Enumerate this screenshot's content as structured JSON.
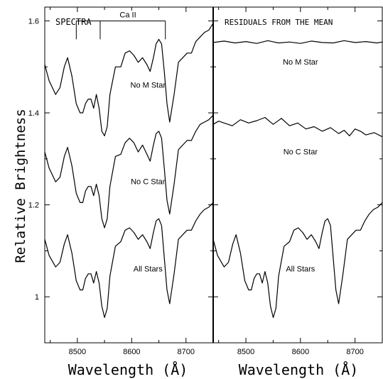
{
  "chart_data": [
    {
      "type": "line",
      "panel_label": "SPECTRA",
      "xlabel": "Wavelength (Å)",
      "ylabel": "Relative Brightness",
      "xlim": [
        8440,
        8750
      ],
      "ylim": [
        0.9,
        1.63
      ],
      "x_ticks": [
        8500,
        8600,
        8700
      ],
      "y_ticks": [
        1,
        1.2,
        1.4,
        1.6
      ],
      "y_tick_labels": [
        "1",
        "1.2",
        "1.4",
        "1.6"
      ],
      "grid": false,
      "annotation": {
        "label": "Ca II",
        "lines_angstrom": [
          8498,
          8542,
          8662
        ],
        "bracket_y": 1.6,
        "tick_bottom_y": 1.56
      },
      "series": [
        {
          "name": "No M Star",
          "label_at": [
            8630,
            1.455
          ],
          "x": [
            8440,
            8448,
            8460,
            8468,
            8476,
            8482,
            8490,
            8498,
            8505,
            8510,
            8515,
            8520,
            8525,
            8530,
            8535,
            8540,
            8545,
            8550,
            8555,
            8560,
            8570,
            8580,
            8588,
            8596,
            8604,
            8612,
            8620,
            8628,
            8634,
            8640,
            8645,
            8650,
            8655,
            8660,
            8665,
            8670,
            8678,
            8686,
            8694,
            8702,
            8710,
            8718,
            8726,
            8734,
            8742,
            8750
          ],
          "y": [
            1.505,
            1.47,
            1.44,
            1.455,
            1.5,
            1.52,
            1.48,
            1.42,
            1.4,
            1.4,
            1.42,
            1.43,
            1.43,
            1.41,
            1.44,
            1.41,
            1.36,
            1.35,
            1.37,
            1.44,
            1.5,
            1.5,
            1.53,
            1.535,
            1.525,
            1.51,
            1.52,
            1.505,
            1.49,
            1.52,
            1.55,
            1.56,
            1.55,
            1.49,
            1.42,
            1.38,
            1.44,
            1.51,
            1.52,
            1.53,
            1.53,
            1.555,
            1.565,
            1.575,
            1.58,
            1.595
          ]
        },
        {
          "name": "No C Star",
          "label_at": [
            8630,
            1.245
          ],
          "x": [
            8440,
            8448,
            8460,
            8468,
            8476,
            8482,
            8490,
            8498,
            8505,
            8510,
            8515,
            8520,
            8525,
            8530,
            8535,
            8540,
            8545,
            8550,
            8555,
            8560,
            8570,
            8580,
            8588,
            8596,
            8604,
            8612,
            8620,
            8628,
            8634,
            8640,
            8645,
            8650,
            8655,
            8660,
            8665,
            8670,
            8678,
            8686,
            8694,
            8702,
            8710,
            8718,
            8726,
            8734,
            8742,
            8750
          ],
          "y": [
            1.315,
            1.28,
            1.25,
            1.26,
            1.305,
            1.325,
            1.285,
            1.225,
            1.205,
            1.205,
            1.23,
            1.24,
            1.24,
            1.22,
            1.245,
            1.22,
            1.17,
            1.15,
            1.17,
            1.24,
            1.305,
            1.31,
            1.335,
            1.345,
            1.335,
            1.315,
            1.33,
            1.31,
            1.295,
            1.33,
            1.355,
            1.36,
            1.345,
            1.28,
            1.21,
            1.18,
            1.245,
            1.32,
            1.33,
            1.34,
            1.34,
            1.36,
            1.375,
            1.38,
            1.385,
            1.395
          ]
        },
        {
          "name": "All Stars",
          "label_at": [
            8630,
            1.055
          ],
          "x": [
            8440,
            8448,
            8460,
            8468,
            8476,
            8482,
            8490,
            8498,
            8505,
            8510,
            8515,
            8520,
            8525,
            8530,
            8535,
            8540,
            8545,
            8550,
            8555,
            8560,
            8570,
            8580,
            8588,
            8596,
            8604,
            8612,
            8620,
            8628,
            8634,
            8640,
            8645,
            8650,
            8655,
            8660,
            8665,
            8670,
            8678,
            8686,
            8694,
            8702,
            8710,
            8718,
            8726,
            8734,
            8742,
            8750
          ],
          "y": [
            1.125,
            1.09,
            1.065,
            1.075,
            1.115,
            1.135,
            1.095,
            1.035,
            1.015,
            1.015,
            1.04,
            1.05,
            1.05,
            1.03,
            1.055,
            1.03,
            0.98,
            0.955,
            0.975,
            1.045,
            1.11,
            1.12,
            1.145,
            1.15,
            1.14,
            1.125,
            1.135,
            1.12,
            1.105,
            1.14,
            1.165,
            1.17,
            1.155,
            1.085,
            1.015,
            0.985,
            1.05,
            1.125,
            1.135,
            1.145,
            1.145,
            1.165,
            1.18,
            1.19,
            1.195,
            1.205
          ]
        }
      ]
    },
    {
      "type": "line",
      "panel_label": "RESIDUALS FROM THE MEAN",
      "xlabel": "Wavelength (Å)",
      "ylabel": "",
      "xlim": [
        8440,
        8750
      ],
      "ylim": [
        0.9,
        1.63
      ],
      "x_ticks": [
        8500,
        8600,
        8700
      ],
      "grid": false,
      "series": [
        {
          "name": "No M Star",
          "label_at": [
            8600,
            1.505
          ],
          "x": [
            8440,
            8460,
            8480,
            8500,
            8520,
            8540,
            8560,
            8580,
            8600,
            8620,
            8640,
            8660,
            8680,
            8700,
            8720,
            8740,
            8750
          ],
          "y": [
            1.553,
            1.556,
            1.552,
            1.555,
            1.551,
            1.557,
            1.552,
            1.554,
            1.551,
            1.556,
            1.553,
            1.552,
            1.557,
            1.553,
            1.555,
            1.552,
            1.554
          ]
        },
        {
          "name": "No C Star",
          "label_at": [
            8600,
            1.31
          ],
          "x": [
            8440,
            8450,
            8460,
            8475,
            8490,
            8505,
            8520,
            8535,
            8550,
            8565,
            8580,
            8595,
            8610,
            8625,
            8640,
            8655,
            8670,
            8680,
            8690,
            8700,
            8710,
            8720,
            8735,
            8750
          ],
          "y": [
            1.375,
            1.382,
            1.378,
            1.372,
            1.385,
            1.378,
            1.383,
            1.39,
            1.375,
            1.388,
            1.372,
            1.378,
            1.365,
            1.37,
            1.36,
            1.368,
            1.355,
            1.362,
            1.35,
            1.365,
            1.36,
            1.352,
            1.357,
            1.348
          ]
        },
        {
          "name": "All Stars",
          "label_at": [
            8600,
            1.055
          ],
          "x": [
            8440,
            8448,
            8460,
            8468,
            8476,
            8482,
            8490,
            8498,
            8505,
            8510,
            8515,
            8520,
            8525,
            8530,
            8535,
            8540,
            8545,
            8550,
            8555,
            8560,
            8570,
            8580,
            8588,
            8596,
            8604,
            8612,
            8620,
            8628,
            8634,
            8640,
            8645,
            8650,
            8655,
            8660,
            8665,
            8670,
            8678,
            8686,
            8694,
            8702,
            8710,
            8718,
            8726,
            8734,
            8742,
            8750
          ],
          "y": [
            1.125,
            1.09,
            1.065,
            1.075,
            1.115,
            1.135,
            1.095,
            1.035,
            1.015,
            1.015,
            1.04,
            1.05,
            1.05,
            1.03,
            1.055,
            1.03,
            0.98,
            0.955,
            0.975,
            1.045,
            1.11,
            1.12,
            1.145,
            1.15,
            1.14,
            1.125,
            1.135,
            1.12,
            1.105,
            1.14,
            1.165,
            1.17,
            1.155,
            1.085,
            1.015,
            0.985,
            1.05,
            1.125,
            1.135,
            1.145,
            1.145,
            1.165,
            1.18,
            1.19,
            1.195,
            1.205
          ]
        }
      ]
    }
  ]
}
